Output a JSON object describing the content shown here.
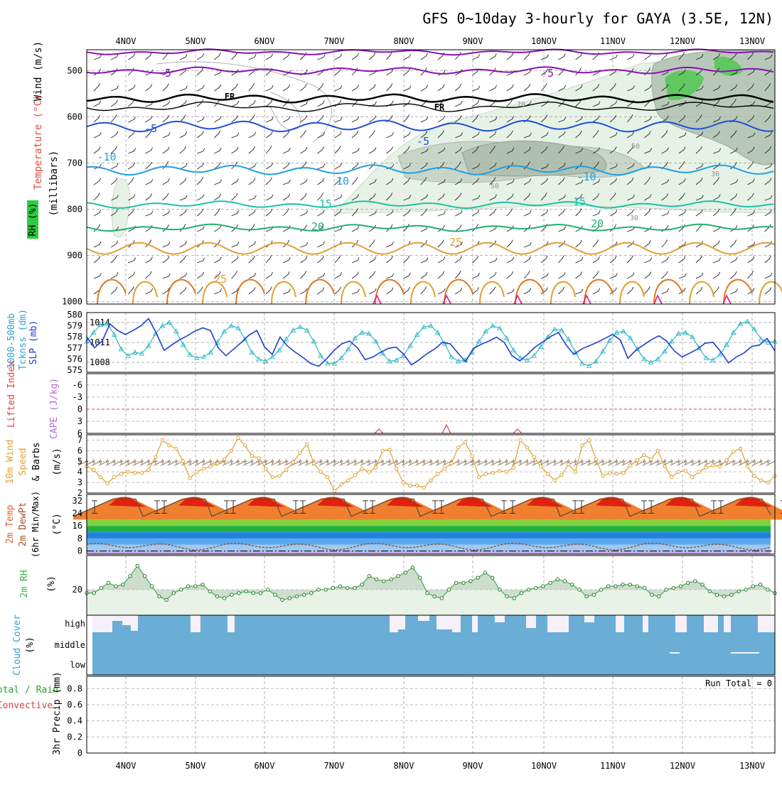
{
  "title": "GFS 0~10day 3-hourly for GAYA (3.5E, 12N)",
  "days": [
    "4NOV",
    "5NOV",
    "6NOV",
    "7NOV",
    "8NOV",
    "9NOV",
    "10NOV",
    "11NOV",
    "12NOV",
    "13NOV"
  ],
  "colors": {
    "purple": "#8b10b8",
    "black": "#000000",
    "blue": "#1f4fd8",
    "lightblue": "#1fa0e0",
    "teal": "#1fc0a8",
    "green": "#20b070",
    "orange": "#e0a030",
    "darkorange": "#e07820",
    "magenta": "#e01890",
    "cyan": "#30b8c8",
    "slpblue": "#2040d0",
    "rh_green": "#3cb44b",
    "cloud_blue": "#6aaed6",
    "red": "#e04040"
  },
  "panels": {
    "upper": {
      "labels": [
        "Wind (m/s)",
        "Temperature (°C)",
        "RH (%)",
        "(millibars)"
      ],
      "yticks": [
        "500",
        "600",
        "700",
        "800",
        "900",
        "1000"
      ],
      "contour_labels": [
        "-5",
        "-5",
        "FR",
        "FR",
        "-5",
        "-5",
        "-10",
        "-10",
        "10",
        "15",
        "15",
        "20",
        "20",
        "25",
        "25",
        "-10"
      ],
      "rh_labels": [
        "30",
        "50",
        "30",
        "70",
        "50"
      ]
    },
    "thickness": {
      "labels": [
        "1000-500mb",
        "Tcknss (dm)",
        "SLP (mb)"
      ],
      "left_ticks": [
        "580",
        "579",
        "578",
        "577",
        "576",
        "575"
      ],
      "right_ticks": [
        "1014",
        "1011",
        "1008"
      ]
    },
    "cape": {
      "labels": [
        "Lifted Index",
        "CAPE (J/kg)"
      ],
      "yticks": [
        "-6",
        "-3",
        "0",
        "3",
        "6"
      ]
    },
    "wind10m": {
      "labels": [
        "10m Wind",
        "Speed",
        "& Barbs",
        "(m/s)"
      ],
      "yticks": [
        "7",
        "6",
        "5",
        "4",
        "3",
        "2"
      ]
    },
    "temp2m": {
      "labels": [
        "2m Temp",
        "2m DewPt",
        "(6hr Min/Max)",
        "(°C)"
      ],
      "yticks": [
        "32",
        "24",
        "16",
        "8",
        "0"
      ]
    },
    "rh2m": {
      "labels": [
        "2m RH",
        "(%)"
      ],
      "yticks": [
        "20"
      ]
    },
    "cloud": {
      "labels": [
        "Cloud Cover",
        "(%)"
      ],
      "levels": [
        "high",
        "middle",
        "low"
      ]
    },
    "precip": {
      "labels": [
        "Total / Rain",
        "Convective",
        "3hr Precip (mm)"
      ],
      "yticks": [
        "0.8",
        "0.6",
        "0.4",
        "0.2",
        "0"
      ],
      "run_total": "Run Total = 0"
    }
  },
  "chart_data": [
    {
      "type": "line",
      "title": "",
      "x_unit": "3-hourly steps",
      "series": [
        {
          "name": "SLP (mb)",
          "values": [
            1011.8,
            1010.2,
            1011.2,
            1013.8,
            1012.8,
            1012.2,
            1012.8,
            1013.5,
            1014.6,
            1012.4,
            1009.8,
            1010.6,
            1011.4,
            1012.0,
            1012.7,
            1013.2,
            1012.8,
            1010.2,
            1009.0,
            1010.0,
            1011.0,
            1012.1,
            1012.8,
            1010.3,
            1009.2,
            1011.8,
            1010.4,
            1009.5,
            1008.7,
            1007.8,
            1007.4,
            1008.5,
            1009.8,
            1010.8,
            1011.2,
            1010.2,
            1008.4,
            1008.8,
            1009.5,
            1010.1,
            1010.3,
            1009.2,
            1007.6,
            1008.4,
            1009.3,
            1010.0,
            1011.0,
            1010.8,
            1009.4,
            1008.1,
            1010.1,
            1010.7,
            1011.2,
            1011.8,
            1011.0,
            1009.0,
            1008.2,
            1009.2,
            1010.3,
            1011.1,
            1011.9,
            1012.5,
            1010.6,
            1009.2,
            1010.0,
            1010.5,
            1011.0,
            1011.6,
            1012.2,
            1011.4,
            1008.6,
            1009.8,
            1010.6,
            1011.4,
            1012.0,
            1011.2,
            1009.7,
            1008.8,
            1009.4,
            1010.0,
            1010.9,
            1011.0,
            1009.6,
            1007.9,
            1008.8,
            1009.4,
            1010.4,
            1010.6,
            1011.6,
            1009.7
          ]
        },
        {
          "name": "1000-500mb Thickness (dm)",
          "values": [
            577.6,
            578.4,
            579.1,
            579.2,
            578.2,
            576.9,
            576.3,
            576.6,
            576.5,
            577.2,
            578.3,
            579.0,
            579.3,
            578.5,
            577.3,
            576.4,
            576.1,
            576.2,
            576.6,
            577.5,
            578.5,
            579.0,
            578.8,
            577.8,
            576.6,
            576.0,
            575.8,
            576.2,
            576.8,
            577.8,
            578.6,
            578.9,
            578.6,
            577.6,
            576.3,
            575.6,
            575.6,
            576.1,
            576.9,
            577.9,
            578.4,
            578.3,
            577.6,
            576.5,
            575.8,
            575.9,
            576.3,
            577.2,
            578.2,
            578.9,
            579.0,
            578.4,
            577.4,
            576.2,
            575.8,
            575.9,
            576.6,
            577.6,
            578.5,
            579.0,
            578.8,
            577.9,
            576.8,
            576.1,
            575.9,
            576.3,
            577.1,
            578.0,
            578.7,
            578.6,
            577.8,
            576.6,
            575.6,
            575.4,
            575.8,
            576.7,
            577.7,
            578.4,
            578.5,
            577.9,
            576.9,
            576.0,
            575.7,
            576.0,
            576.7,
            577.6,
            578.3,
            578.4,
            578.0,
            577.0,
            576.1,
            575.9,
            576.4,
            577.3,
            578.4,
            579.2,
            579.4,
            578.7,
            577.8,
            577.5,
            577.6
          ]
        }
      ],
      "ylim": [
        575,
        580
      ]
    },
    {
      "type": "line",
      "title": "",
      "series": [
        {
          "name": "10m Wind Speed (m/s)",
          "values": [
            4.5,
            4.2,
            3.5,
            2.9,
            3.5,
            3.8,
            4.0,
            3.9,
            3.9,
            4.2,
            5.4,
            7.0,
            6.5,
            6.2,
            5.0,
            3.4,
            4.0,
            4.3,
            4.5,
            4.8,
            5.2,
            6.0,
            7.2,
            6.5,
            5.5,
            5.3,
            4.3,
            3.5,
            3.6,
            4.2,
            4.9,
            5.8,
            6.6,
            4.8,
            4.0,
            3.5,
            2.2,
            2.8,
            3.2,
            3.7,
            4.3,
            4.0,
            4.4,
            6.0,
            6.1,
            4.3,
            3.0,
            2.7,
            2.7,
            2.5,
            3.2,
            3.8,
            4.3,
            4.8,
            6.3,
            6.8,
            5.5,
            3.5,
            3.8,
            3.9,
            4.1,
            4.0,
            4.4,
            7.0,
            6.3,
            5.4,
            4.5,
            3.8,
            3.2,
            3.7,
            4.7,
            4.0,
            6.5,
            7.0,
            5.2,
            3.6,
            3.9,
            3.8,
            3.9,
            4.6,
            5.1,
            5.6,
            5.2,
            6.0,
            4.5,
            3.5,
            4.0,
            4.1,
            3.5,
            4.0,
            4.4,
            4.6,
            4.5,
            5.1,
            5.9,
            6.2,
            4.5,
            3.6,
            3.2,
            3.0,
            3.6
          ]
        }
      ],
      "ylim": [
        2,
        7.5
      ]
    },
    {
      "type": "area",
      "title": "",
      "series": [
        {
          "name": "2m Temp Max (°C)",
          "values": [
            34.0,
            34.0,
            34.0,
            34.0,
            34.0,
            34.0,
            34.0,
            34.0,
            34.0,
            34.0
          ]
        },
        {
          "name": "2m Temp Min (°C)",
          "values": [
            22.0,
            22.0,
            22.0,
            22.0,
            22.0,
            22.0,
            22.0,
            22.0,
            22.0,
            22.0
          ]
        }
      ],
      "ylim": [
        -2,
        36
      ]
    },
    {
      "type": "area",
      "title": "",
      "series": [
        {
          "name": "2m RH (%)",
          "values": [
            18,
            18,
            21,
            24,
            22,
            23,
            28,
            34,
            28,
            22,
            16,
            14,
            18,
            20,
            22,
            22,
            23,
            19,
            16,
            15,
            17,
            18,
            19,
            18,
            18,
            20,
            17,
            14,
            15,
            16,
            17,
            18,
            20,
            20,
            21,
            22,
            21,
            21,
            23,
            28,
            26,
            25,
            26,
            28,
            30,
            33,
            27,
            18,
            16,
            15,
            20,
            24,
            24,
            25,
            27,
            30,
            27,
            20,
            16,
            15,
            18,
            20,
            21,
            22,
            24,
            26,
            25,
            23,
            20,
            16,
            17,
            20,
            22,
            22,
            23,
            23,
            22,
            21,
            17,
            16,
            20,
            21,
            22,
            24,
            25,
            23,
            19,
            17,
            16,
            17,
            19,
            20,
            22,
            23,
            20,
            18
          ]
        }
      ],
      "ylim": [
        5,
        40
      ]
    },
    {
      "type": "heatmap",
      "title": "",
      "rows": [
        "high",
        "middle",
        "low"
      ],
      "note": "Cloud cover mostly full (blue) across middle and low levels; high-level cover varies."
    },
    {
      "type": "bar",
      "title": "",
      "run_total": 0,
      "ylim": [
        0,
        1.0
      ],
      "values": []
    }
  ]
}
